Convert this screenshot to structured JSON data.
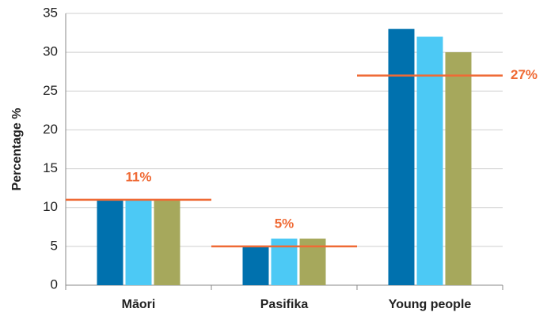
{
  "chart_data": {
    "type": "bar",
    "y_label": "Percentage %",
    "categories": [
      "Māori",
      "Pasifika",
      "Young people"
    ],
    "series": [
      {
        "color": "#0071ae",
        "values": [
          11,
          5,
          33
        ]
      },
      {
        "color": "#4cc9f5",
        "values": [
          11,
          6,
          32
        ]
      },
      {
        "color": "#a6a85c",
        "values": [
          11,
          6,
          30
        ]
      }
    ],
    "reference_lines": [
      {
        "value": 11,
        "label": "11%"
      },
      {
        "value": 5,
        "label": "5%"
      },
      {
        "value": 27,
        "label": "27%"
      }
    ],
    "reference_color": "#ef6a35",
    "ylim": [
      0,
      35
    ],
    "yticks": [
      0,
      5,
      10,
      15,
      20,
      25,
      30,
      35
    ],
    "grid": true
  }
}
